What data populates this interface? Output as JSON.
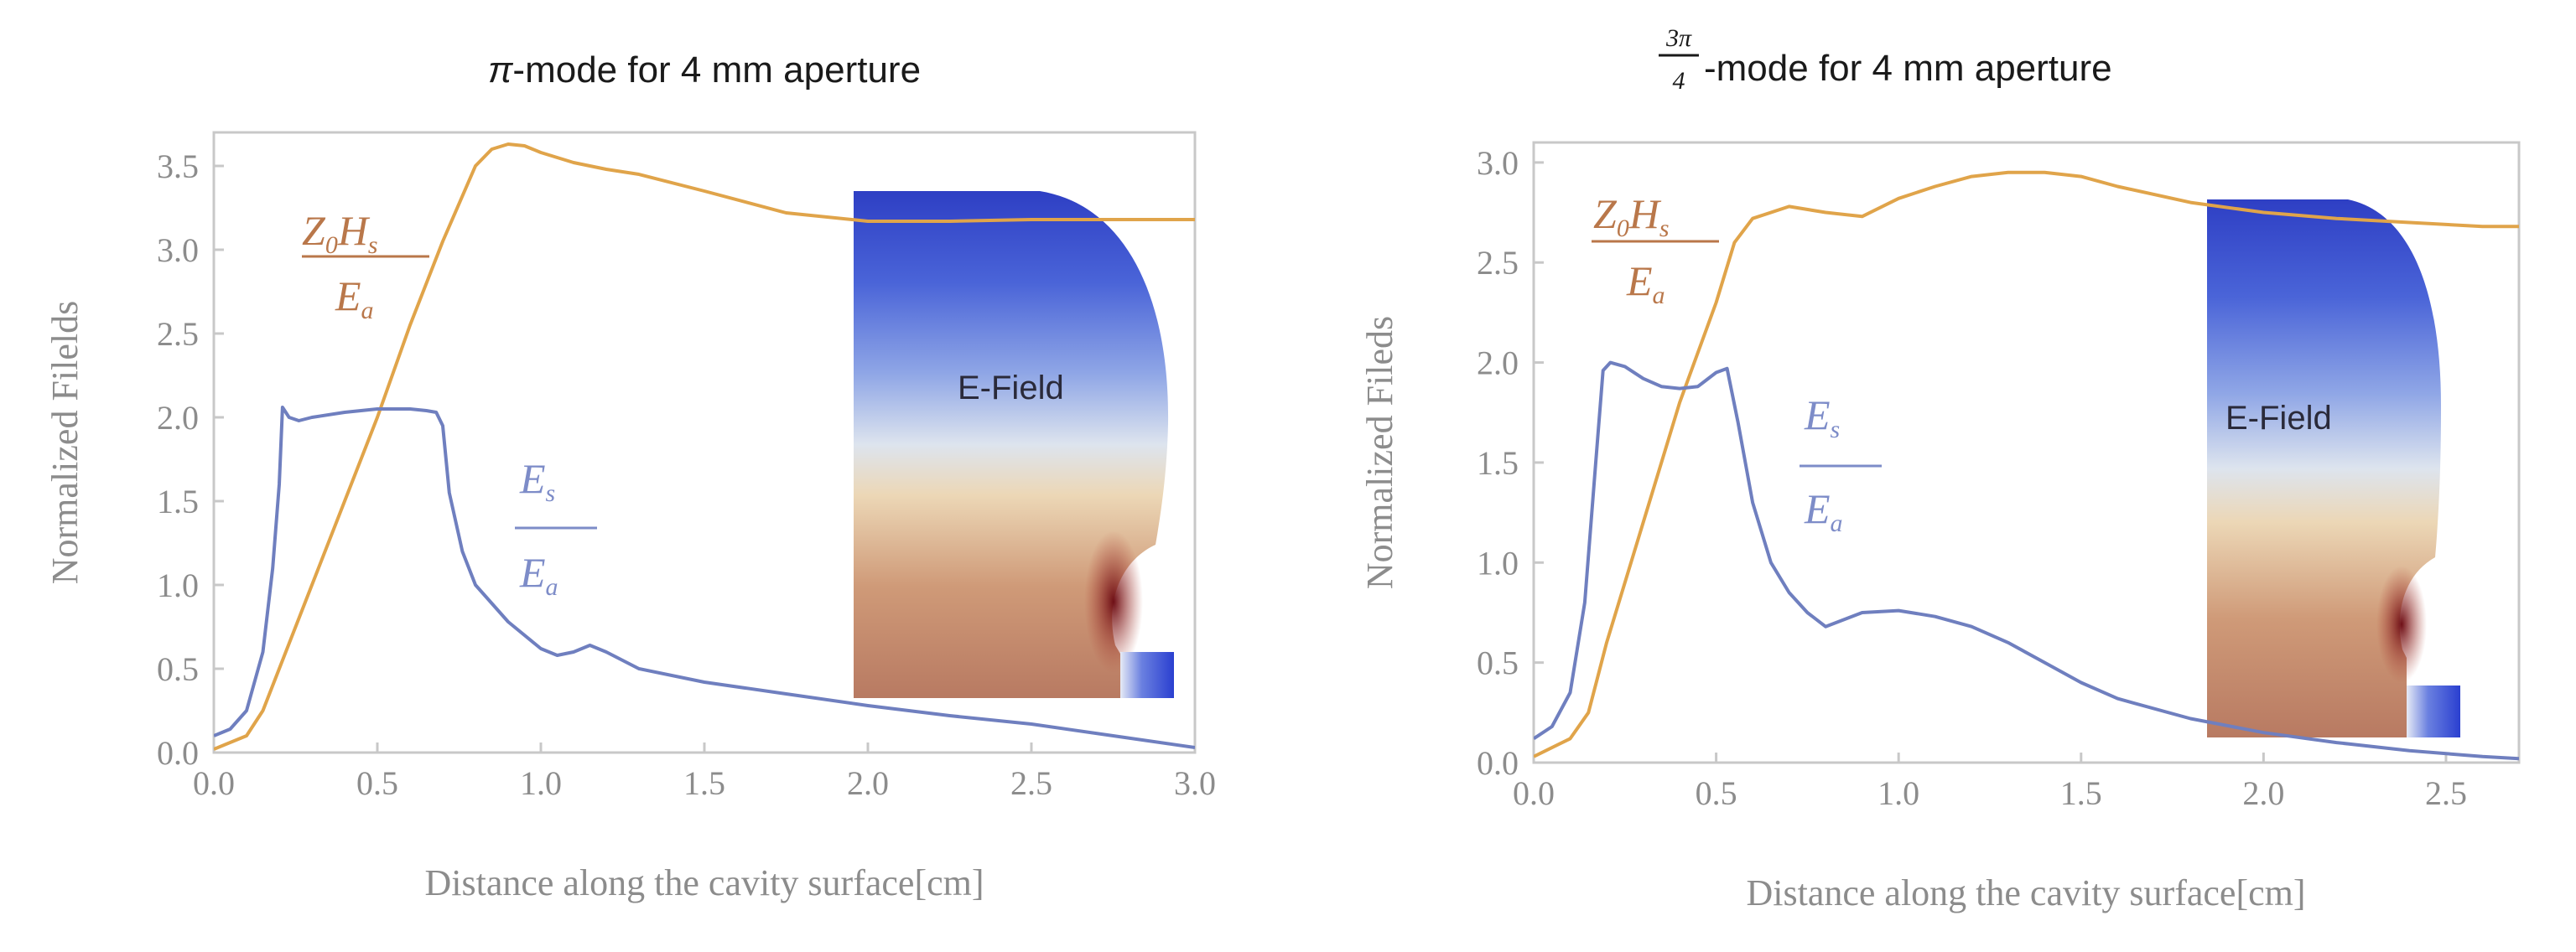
{
  "colors": {
    "es_curve": "#6f7fbf",
    "h_curve": "#e0a44a",
    "es_text": "#7d8cc8",
    "h_text": "#b9774a",
    "frame": "#c8c8c8",
    "tick_text": "#8c8c8c"
  },
  "chart_data": [
    {
      "type": "line",
      "title": "π-mode for 4 mm aperture",
      "title_mode_symbol": "π",
      "title_rest": "-mode for 4 mm aperture",
      "xlabel": "Distance along the cavity surface[cm]",
      "ylabel": "Normalized Filelds",
      "xlim": [
        0,
        3.0
      ],
      "ylim": [
        0,
        3.7
      ],
      "xticks": [
        "0.0",
        "0.5",
        "1.0",
        "1.5",
        "2.0",
        "2.5",
        "3.0"
      ],
      "yticks": [
        "0.0",
        "0.5",
        "1.0",
        "1.5",
        "2.0",
        "2.5",
        "3.0",
        "3.5"
      ],
      "annotations": {
        "h_num": "Z",
        "h_num_sub": "0",
        "h_num2": "H",
        "h_num2_sub": "s",
        "h_den": "E",
        "h_den_sub": "a",
        "e_num": "E",
        "e_num_sub": "s",
        "e_den": "E",
        "e_den_sub": "a"
      },
      "inset_label": "E-Field",
      "series": [
        {
          "name": "Es/Ea",
          "x": [
            0,
            0.05,
            0.1,
            0.15,
            0.18,
            0.2,
            0.21,
            0.23,
            0.26,
            0.3,
            0.4,
            0.5,
            0.6,
            0.65,
            0.68,
            0.7,
            0.72,
            0.76,
            0.8,
            0.9,
            1.0,
            1.05,
            1.1,
            1.15,
            1.2,
            1.3,
            1.5,
            1.75,
            2.0,
            2.25,
            2.5,
            2.75,
            3.0
          ],
          "y": [
            0.1,
            0.14,
            0.25,
            0.6,
            1.1,
            1.6,
            2.06,
            2.0,
            1.98,
            2.0,
            2.03,
            2.05,
            2.05,
            2.04,
            2.03,
            1.95,
            1.55,
            1.2,
            1.0,
            0.78,
            0.62,
            0.58,
            0.6,
            0.64,
            0.6,
            0.5,
            0.42,
            0.35,
            0.28,
            0.22,
            0.17,
            0.1,
            0.03
          ]
        },
        {
          "name": "Z0Hs/Ea",
          "x": [
            0,
            0.1,
            0.15,
            0.2,
            0.3,
            0.4,
            0.5,
            0.6,
            0.7,
            0.8,
            0.85,
            0.9,
            0.95,
            1.0,
            1.1,
            1.2,
            1.3,
            1.5,
            1.75,
            2.0,
            2.25,
            2.5,
            2.75,
            3.0
          ],
          "y": [
            0.02,
            0.1,
            0.25,
            0.5,
            1.0,
            1.5,
            2.0,
            2.55,
            3.05,
            3.5,
            3.6,
            3.63,
            3.62,
            3.58,
            3.52,
            3.48,
            3.45,
            3.35,
            3.22,
            3.17,
            3.17,
            3.18,
            3.18,
            3.18
          ]
        }
      ]
    },
    {
      "type": "line",
      "title": "3π/4-mode for 4 mm aperture",
      "title_frac_num": "3π",
      "title_frac_den": "4",
      "title_rest": "-mode for 4 mm aperture",
      "xlabel": "Distance along the cavity surface[cm]",
      "ylabel": "Normalized Fileds",
      "xlim": [
        0,
        2.7
      ],
      "ylim": [
        0,
        3.1
      ],
      "xticks": [
        "0.0",
        "0.5",
        "1.0",
        "1.5",
        "2.0",
        "2.5"
      ],
      "yticks": [
        "0.0",
        "0.5",
        "1.0",
        "1.5",
        "2.0",
        "2.5",
        "3.0"
      ],
      "annotations": {
        "h_num": "Z",
        "h_num_sub": "0",
        "h_num2": "H",
        "h_num2_sub": "s",
        "h_den": "E",
        "h_den_sub": "a",
        "e_num": "E",
        "e_num_sub": "s",
        "e_den": "E",
        "e_den_sub": "a"
      },
      "inset_label": "E-Field",
      "series": [
        {
          "name": "Es/Ea",
          "x": [
            0,
            0.05,
            0.1,
            0.14,
            0.17,
            0.19,
            0.21,
            0.25,
            0.3,
            0.35,
            0.4,
            0.45,
            0.5,
            0.53,
            0.56,
            0.6,
            0.65,
            0.7,
            0.75,
            0.8,
            0.9,
            1.0,
            1.1,
            1.2,
            1.3,
            1.4,
            1.5,
            1.6,
            1.8,
            2.0,
            2.2,
            2.4,
            2.6,
            2.7
          ],
          "y": [
            0.12,
            0.18,
            0.35,
            0.8,
            1.5,
            1.96,
            2.0,
            1.98,
            1.92,
            1.88,
            1.87,
            1.88,
            1.95,
            1.97,
            1.7,
            1.3,
            1.0,
            0.85,
            0.75,
            0.68,
            0.75,
            0.76,
            0.73,
            0.68,
            0.6,
            0.5,
            0.4,
            0.32,
            0.22,
            0.15,
            0.1,
            0.06,
            0.03,
            0.02
          ]
        },
        {
          "name": "Z0Hs/Ea",
          "x": [
            0,
            0.1,
            0.15,
            0.2,
            0.3,
            0.4,
            0.5,
            0.55,
            0.6,
            0.7,
            0.8,
            0.9,
            1.0,
            1.1,
            1.2,
            1.3,
            1.4,
            1.5,
            1.6,
            1.8,
            2.0,
            2.2,
            2.4,
            2.6,
            2.7
          ],
          "y": [
            0.03,
            0.12,
            0.25,
            0.6,
            1.2,
            1.8,
            2.3,
            2.6,
            2.72,
            2.78,
            2.75,
            2.73,
            2.82,
            2.88,
            2.93,
            2.95,
            2.95,
            2.93,
            2.88,
            2.8,
            2.75,
            2.72,
            2.7,
            2.68,
            2.68
          ]
        }
      ]
    }
  ]
}
